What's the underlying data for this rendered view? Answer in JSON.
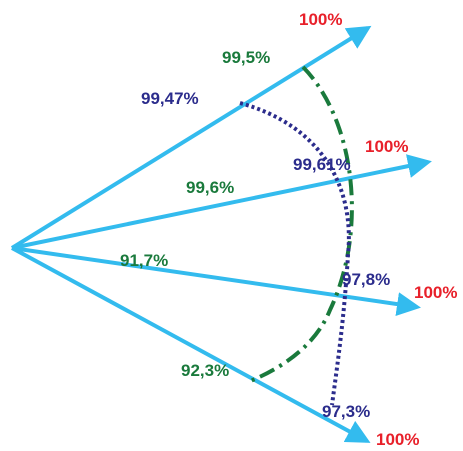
{
  "colors": {
    "arrow": "#33bbee",
    "red_label": "#e8202a",
    "green": "#1a7a3c",
    "blue": "#2b2c8c",
    "background": "#ffffff"
  },
  "arrows": [
    {
      "label": "100%",
      "color": "red"
    },
    {
      "label": "100%",
      "color": "red"
    },
    {
      "label": "100%",
      "color": "red"
    },
    {
      "label": "100%",
      "color": "red"
    }
  ],
  "green_curve": {
    "style": "dash-dot",
    "labels": [
      "99,5%",
      "99,6%",
      "91,7%",
      "92,3%"
    ]
  },
  "blue_curve": {
    "style": "dotted",
    "labels": [
      "99,47%",
      "99,61%",
      "97,8%",
      "97,3%"
    ]
  }
}
